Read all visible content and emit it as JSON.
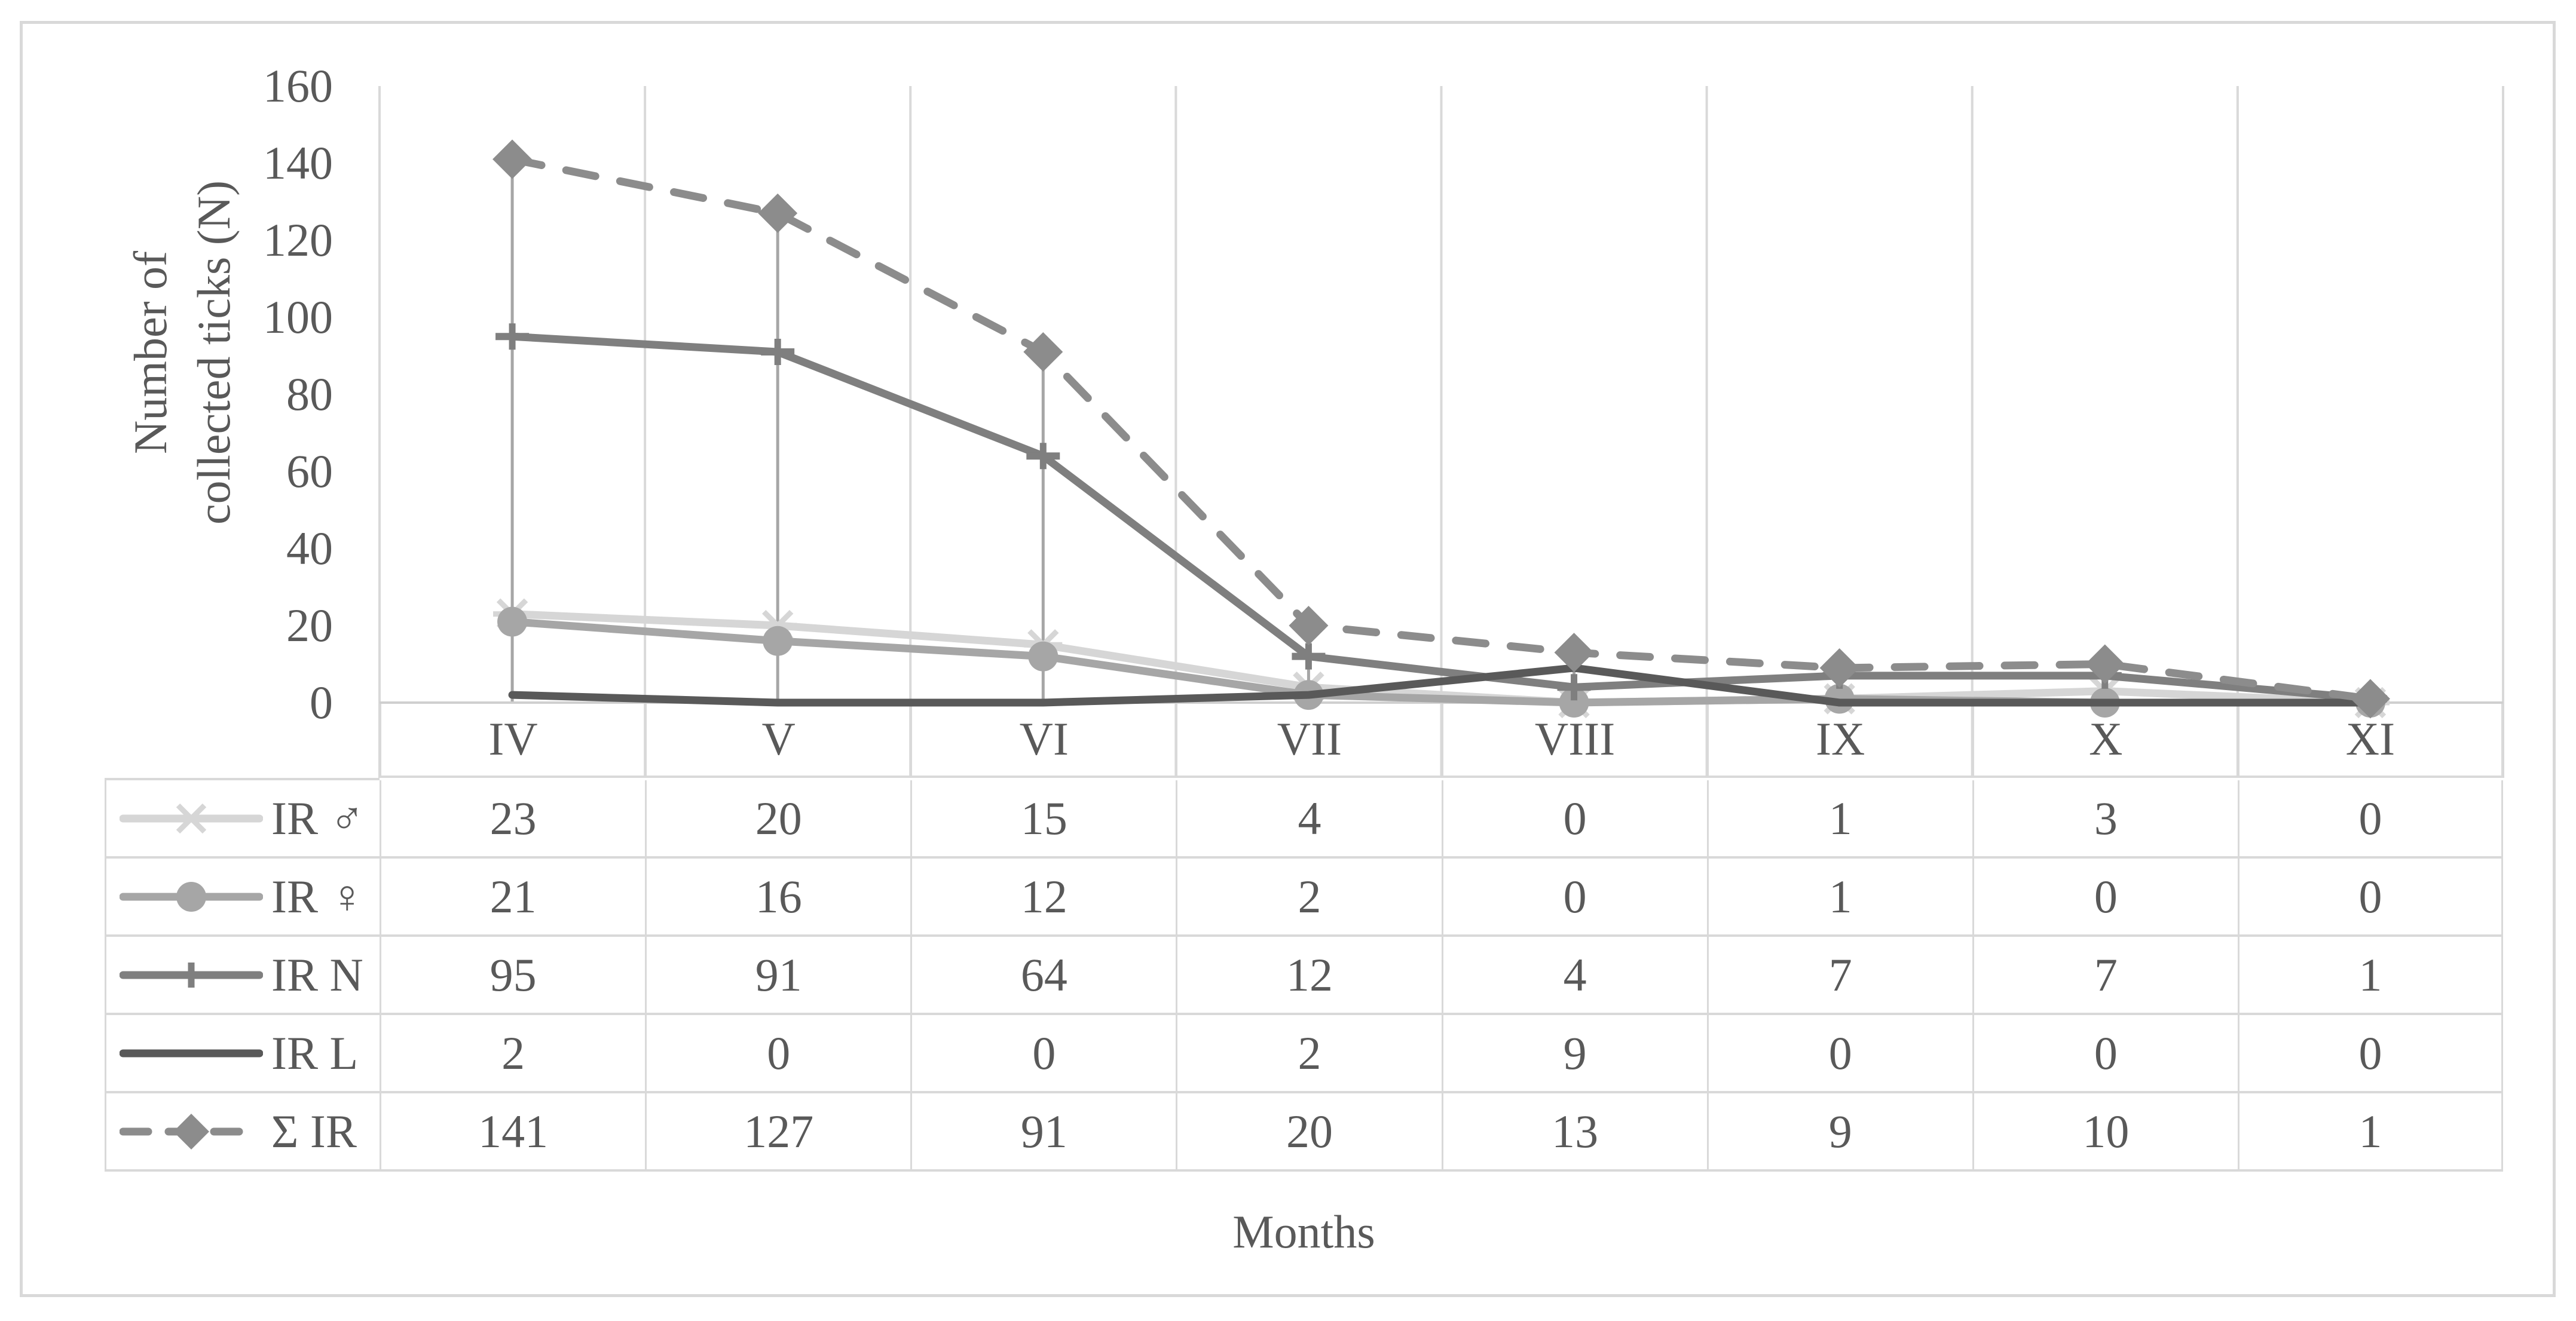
{
  "figure": {
    "border_color": "#d9d9d9",
    "background": "#ffffff",
    "text_color": "#595959"
  },
  "chart_data": {
    "type": "line",
    "title": "",
    "xlabel": "Months",
    "ylabel": "Number of collected ticks (N)",
    "ylabel_lines": [
      "Number of",
      "collected ticks (N)"
    ],
    "categories": [
      "IV",
      "V",
      "VI",
      "VII",
      "VIII",
      "IX",
      "X",
      "XI"
    ],
    "ylim": [
      0,
      160
    ],
    "ytick_step": 20,
    "ytick_labels": [
      "0",
      "20",
      "40",
      "60",
      "80",
      "100",
      "120",
      "140",
      "160"
    ],
    "grid": "vertical-only",
    "gridline_color": "#d9d9d9",
    "axis_line_color": "#cfcfcf",
    "dropline_color": "#a6a6a6",
    "legend_position": "table-left-column",
    "series": [
      {
        "name": "IR ♂",
        "marker": "star6",
        "line_dash": false,
        "color": "#d6d6d6",
        "values": [
          23,
          20,
          15,
          4,
          0,
          1,
          3,
          0
        ]
      },
      {
        "name": "IR ♀",
        "marker": "circle",
        "line_dash": false,
        "color": "#a6a6a6",
        "values": [
          21,
          16,
          12,
          2,
          0,
          1,
          0,
          0
        ]
      },
      {
        "name": "IR N",
        "marker": "plus",
        "line_dash": false,
        "color": "#7f7f7f",
        "values": [
          95,
          91,
          64,
          12,
          4,
          7,
          7,
          1
        ]
      },
      {
        "name": "IR L",
        "marker": "none",
        "line_dash": false,
        "color": "#595959",
        "values": [
          2,
          0,
          0,
          2,
          9,
          0,
          0,
          0
        ]
      },
      {
        "name": "Σ  IR",
        "marker": "diamond",
        "line_dash": true,
        "color": "#8c8c8c",
        "values": [
          141,
          127,
          91,
          20,
          13,
          9,
          10,
          1
        ]
      }
    ],
    "droplines_follow_series": "Σ  IR"
  }
}
